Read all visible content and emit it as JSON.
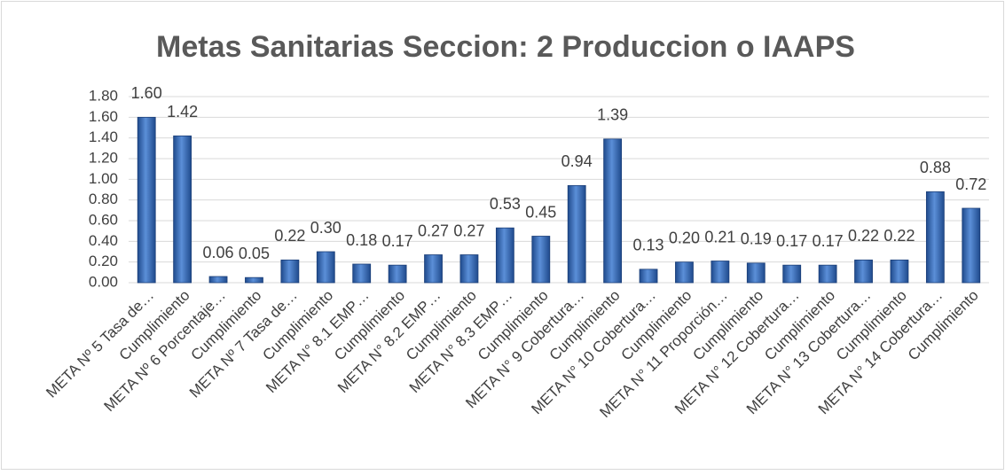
{
  "chart_data": {
    "type": "bar",
    "title": "Metas Sanitarias Seccion: 2 Produccion o IAAPS",
    "categories": [
      "META Nº 5 Tasa de…",
      "Cumplimiento",
      "META Nº 6 Porcentaje…",
      "Cumplimiento",
      "META Nº 7 Tasa de…",
      "Cumplimiento",
      "META N° 8.1 EMP…",
      "Cumplimiento",
      "META N° 8.2 EMP…",
      "Cumplimiento",
      "META N° 8.3 EMP…",
      "Cumplimiento",
      "META N° 9 Cobertura…",
      "Cumplimiento",
      "META N° 10 Cobertura…",
      "Cumplimiento",
      "META N° 11 Proporción…",
      "Cumplimiento",
      "META N° 12 Cobertura…",
      "Cumplimiento",
      "META N° 13 Cobertura…",
      "Cumplimiento",
      "META N° 14 Cobertura…",
      "Cumplimiento"
    ],
    "values": [
      1.6,
      1.42,
      0.06,
      0.05,
      0.22,
      0.3,
      0.18,
      0.17,
      0.27,
      0.27,
      0.53,
      0.45,
      0.94,
      1.39,
      0.13,
      0.2,
      0.21,
      0.19,
      0.17,
      0.17,
      0.22,
      0.22,
      0.88,
      0.72
    ],
    "value_labels": [
      "1.60",
      "1.42",
      "0.06",
      "0.05",
      "0.22",
      "0.30",
      "0.18",
      "0.17",
      "0.27",
      "0.27",
      "0.53",
      "0.45",
      "0.94",
      "1.39",
      "0.13",
      "0.20",
      "0.21",
      "0.19",
      "0.17",
      "0.17",
      "0.22",
      "0.22",
      "0.88",
      "0.72"
    ],
    "color": "#3566b0",
    "ylim": [
      0,
      1.8
    ],
    "yticks": [
      {
        "value": 0,
        "label": "0.00"
      },
      {
        "value": 0.2,
        "label": "0.20"
      },
      {
        "value": 0.4,
        "label": "0.40"
      },
      {
        "value": 0.6,
        "label": "0.60"
      },
      {
        "value": 0.8,
        "label": "0.80"
      },
      {
        "value": 1.0,
        "label": "1.00"
      },
      {
        "value": 1.2,
        "label": "1.20"
      },
      {
        "value": 1.4,
        "label": "1.40"
      },
      {
        "value": 1.6,
        "label": "1.60"
      },
      {
        "value": 1.8,
        "label": "1.80"
      }
    ],
    "grid": true
  }
}
